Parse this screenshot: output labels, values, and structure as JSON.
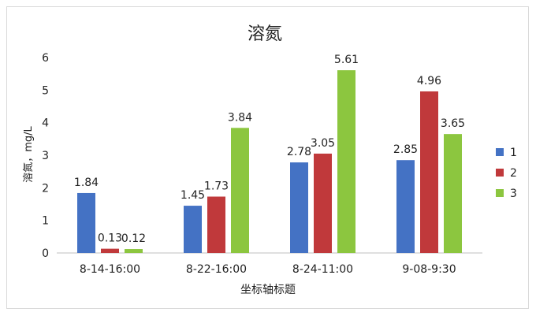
{
  "chart_data": {
    "type": "bar",
    "title": "溶氮",
    "xlabel": "坐标轴标题",
    "ylabel": "溶氮，mg/L",
    "ylim": [
      0,
      6
    ],
    "yticks": [
      0,
      1,
      2,
      3,
      4,
      5,
      6
    ],
    "grid": false,
    "legend": "right",
    "categories": [
      "8-14-16:00",
      "8-22-16:00",
      "8-24-11:00",
      "9-08-9:30"
    ],
    "series": [
      {
        "name": "1",
        "color": "#4472c4",
        "values": [
          1.84,
          1.45,
          2.78,
          2.85
        ],
        "labels": [
          "1.84",
          "1.45",
          "2.78",
          "2.85"
        ]
      },
      {
        "name": "2",
        "color": "#c0393b",
        "values": [
          0.13,
          1.73,
          3.05,
          4.96
        ],
        "labels": [
          "0.13",
          "1.73",
          "3.05",
          "4.96"
        ]
      },
      {
        "name": "3",
        "color": "#8cc63f",
        "values": [
          0.12,
          3.84,
          5.61,
          3.65
        ],
        "labels": [
          "0.12",
          "3.84",
          "5.61",
          "3.65"
        ]
      }
    ]
  }
}
